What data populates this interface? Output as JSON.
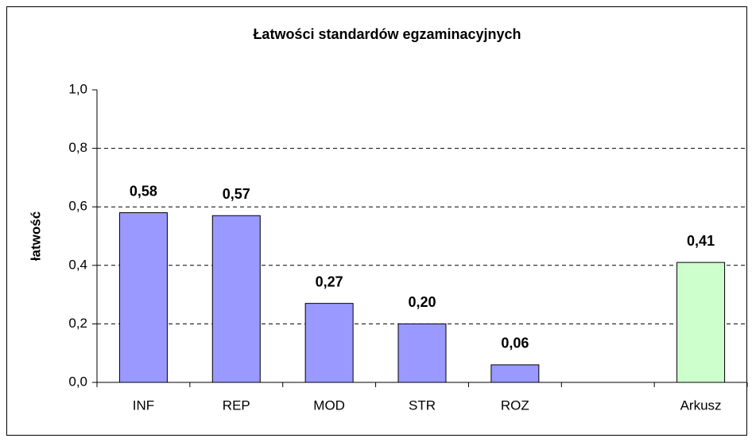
{
  "chart_data": {
    "type": "bar",
    "title": "Łatwości standardów egzaminacyjnych",
    "y_label": "łatwość",
    "categories": [
      "INF",
      "REP",
      "MOD",
      "STR",
      "ROZ",
      null,
      "Arkusz"
    ],
    "values": [
      0.58,
      0.57,
      0.27,
      0.2,
      0.06,
      null,
      0.41
    ],
    "value_labels": [
      "0,58",
      "0,57",
      "0,27",
      "0,20",
      "0,06",
      null,
      "0,41"
    ],
    "colors": [
      "#9999ff",
      "#9999ff",
      "#9999ff",
      "#9999ff",
      "#9999ff",
      null,
      "#ccffcc"
    ],
    "ylim": [
      0,
      1
    ],
    "yticks": [
      {
        "value": 0,
        "label": "0,0"
      },
      {
        "value": 0.2,
        "label": "0,2"
      },
      {
        "value": 0.4,
        "label": "0,4"
      },
      {
        "value": 0.6,
        "label": "0,6"
      },
      {
        "value": 0.8,
        "label": "0,8"
      },
      {
        "value": 1,
        "label": "1,0"
      }
    ],
    "grid": true
  }
}
